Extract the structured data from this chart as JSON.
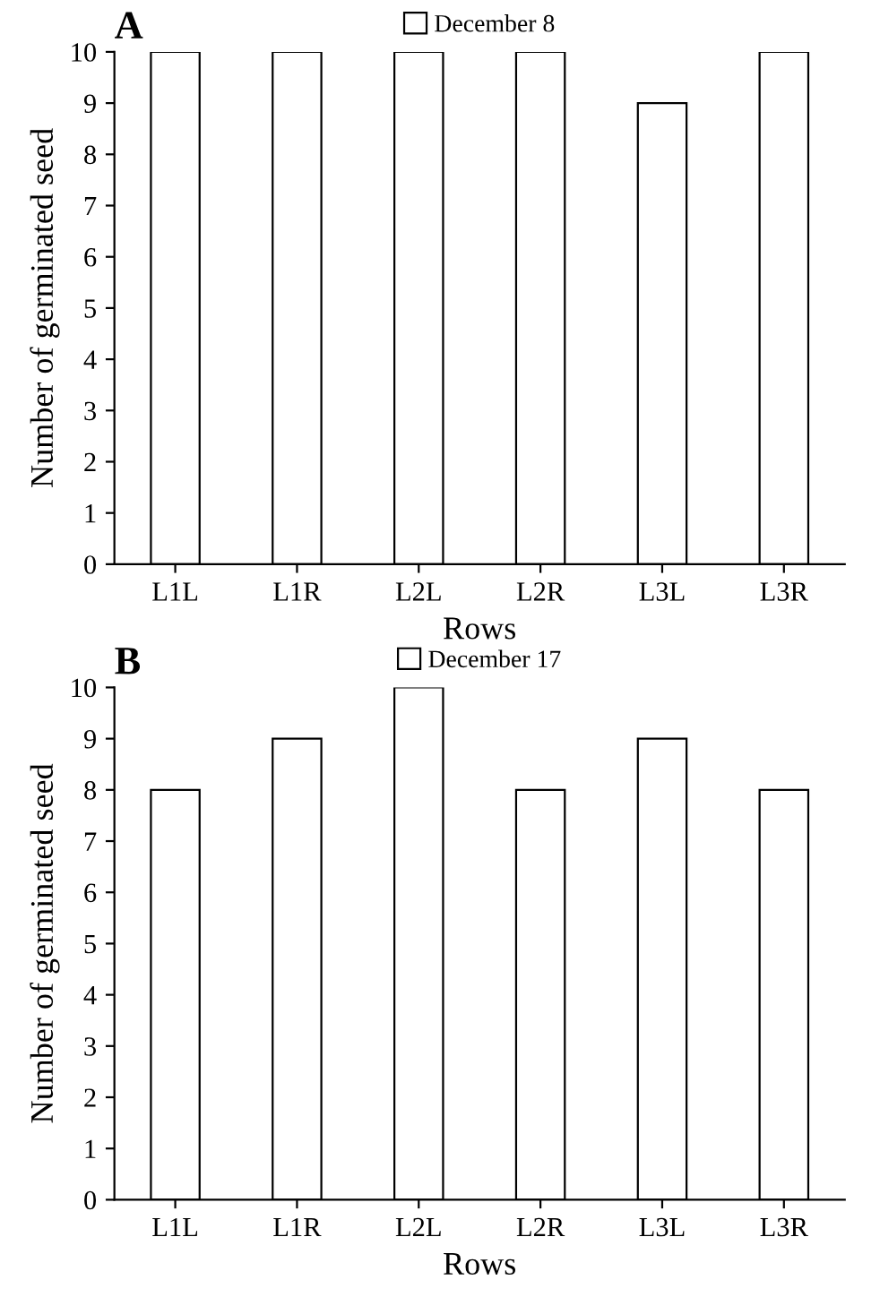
{
  "chart_data": [
    {
      "type": "bar",
      "title": "A",
      "xlabel": "Rows",
      "ylabel": "Number of germinated seed",
      "categories": [
        "L1L",
        "L1R",
        "L2L",
        "L2R",
        "L3L",
        "L3R"
      ],
      "series": [
        {
          "name": "December 8",
          "color": "#ffffff",
          "values": [
            10,
            10,
            10,
            10,
            9,
            10
          ]
        }
      ],
      "ylim": [
        0,
        10
      ],
      "yticks": [
        0,
        1,
        2,
        3,
        4,
        5,
        6,
        7,
        8,
        9,
        10
      ],
      "grid": false,
      "legend": "top"
    },
    {
      "type": "bar",
      "title": "B",
      "xlabel": "Rows",
      "ylabel": "Number of germinated seed",
      "categories": [
        "L1L",
        "L1R",
        "L2L",
        "L2R",
        "L3L",
        "L3R"
      ],
      "series": [
        {
          "name": "December 17",
          "color": "#ffffff",
          "values": [
            8,
            9,
            10,
            8,
            9,
            8
          ]
        }
      ],
      "ylim": [
        0,
        10
      ],
      "yticks": [
        0,
        1,
        2,
        3,
        4,
        5,
        6,
        7,
        8,
        9,
        10
      ],
      "grid": false,
      "legend": "top"
    }
  ]
}
